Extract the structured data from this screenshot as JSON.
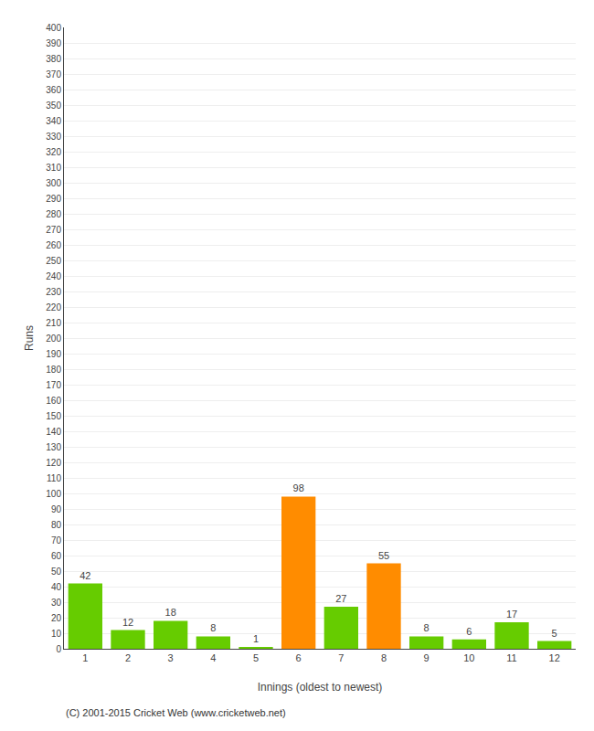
{
  "chart_data": {
    "type": "bar",
    "x": [
      1,
      2,
      3,
      4,
      5,
      6,
      7,
      8,
      9,
      10,
      11,
      12
    ],
    "values": [
      42,
      12,
      18,
      8,
      1,
      98,
      27,
      55,
      8,
      6,
      17,
      5
    ],
    "colors": [
      "#66cc00",
      "#66cc00",
      "#66cc00",
      "#66cc00",
      "#66cc00",
      "#ff8c00",
      "#66cc00",
      "#ff8c00",
      "#66cc00",
      "#66cc00",
      "#66cc00",
      "#66cc00"
    ],
    "xlabel": "Innings (oldest to newest)",
    "ylabel": "Runs",
    "xlim": [
      0.5,
      12.5
    ],
    "xticks": [
      1,
      2,
      3,
      4,
      5,
      6,
      7,
      8,
      9,
      10,
      11,
      12
    ],
    "ylim": [
      0,
      400
    ],
    "yticks": [
      0,
      10,
      20,
      30,
      40,
      50,
      60,
      70,
      80,
      90,
      100,
      110,
      120,
      130,
      140,
      150,
      160,
      170,
      180,
      190,
      200,
      210,
      220,
      230,
      240,
      250,
      260,
      270,
      280,
      290,
      300,
      310,
      320,
      330,
      340,
      350,
      360,
      370,
      380,
      390,
      400
    ],
    "grid": true,
    "data_labels": true,
    "annotations": [
      "(C) 2001-2015 Cricket Web (www.cricketweb.net)"
    ]
  }
}
